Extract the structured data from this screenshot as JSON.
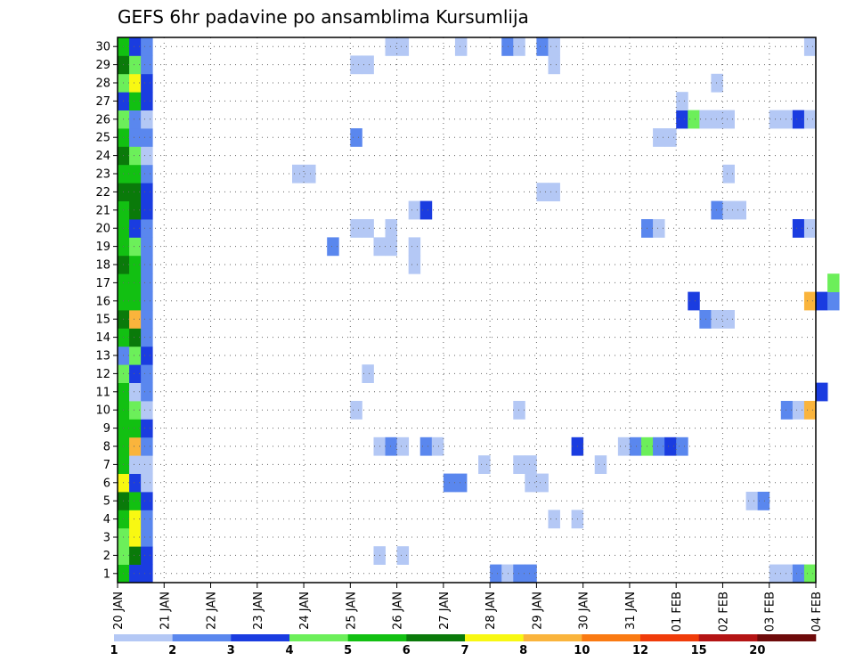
{
  "chart_data": {
    "type": "heatmap",
    "title": "GEFS 6hr padavine po ansamblima Kursumlija",
    "xlabel": "",
    "ylabel": "",
    "x_range": [
      "2024-01-20 00:00",
      "2024-02-04 00:00"
    ],
    "x_step_hours": 6,
    "grid": true,
    "x_tick_labels": [
      "20 JAN",
      "21 JAN",
      "22 JAN",
      "23 JAN",
      "24 JAN",
      "25 JAN",
      "26 JAN",
      "27 JAN",
      "28 JAN",
      "29 JAN",
      "30 JAN",
      "31 JAN",
      "01 FEB",
      "02 FEB",
      "03 FEB",
      "04 FEB"
    ],
    "members": [
      1,
      2,
      3,
      4,
      5,
      6,
      7,
      8,
      9,
      10,
      11,
      12,
      13,
      14,
      15,
      16,
      17,
      18,
      19,
      20,
      21,
      22,
      23,
      24,
      25,
      26,
      27,
      28,
      29,
      30
    ],
    "colorbar": {
      "labels": [
        "1",
        "2",
        "3",
        "4",
        "5",
        "6",
        "7",
        "8",
        "10",
        "12",
        "15",
        "20"
      ],
      "colors": [
        "#b4c8f5",
        "#5a87ee",
        "#1a3ce0",
        "#6cef5a",
        "#12c012",
        "#0a7a0a",
        "#f8f812",
        "#fab43c",
        "#fa7a12",
        "#f03c0a",
        "#b41414",
        "#6e0a0a"
      ]
    },
    "cells": [
      [
        1,
        0,
        5
      ],
      [
        1,
        1,
        3
      ],
      [
        1,
        2,
        3
      ],
      [
        2,
        0,
        4
      ],
      [
        2,
        1,
        6
      ],
      [
        2,
        2,
        3
      ],
      [
        3,
        0,
        4
      ],
      [
        3,
        1,
        7
      ],
      [
        3,
        2,
        2
      ],
      [
        4,
        0,
        5
      ],
      [
        4,
        1,
        7
      ],
      [
        4,
        2,
        2
      ],
      [
        5,
        0,
        6
      ],
      [
        5,
        1,
        5
      ],
      [
        5,
        2,
        3
      ],
      [
        6,
        0,
        7
      ],
      [
        6,
        1,
        3
      ],
      [
        6,
        2,
        1
      ],
      [
        7,
        0,
        5
      ],
      [
        7,
        1,
        1
      ],
      [
        7,
        2,
        1
      ],
      [
        8,
        0,
        5
      ],
      [
        8,
        1,
        8
      ],
      [
        8,
        2,
        2
      ],
      [
        9,
        0,
        5
      ],
      [
        9,
        1,
        5
      ],
      [
        9,
        2,
        3
      ],
      [
        10,
        0,
        5
      ],
      [
        10,
        1,
        4
      ],
      [
        10,
        2,
        1
      ],
      [
        11,
        0,
        5
      ],
      [
        11,
        1,
        1
      ],
      [
        11,
        2,
        2
      ],
      [
        12,
        0,
        4
      ],
      [
        12,
        1,
        3
      ],
      [
        12,
        2,
        2
      ],
      [
        13,
        0,
        2
      ],
      [
        13,
        1,
        4
      ],
      [
        13,
        2,
        3
      ],
      [
        14,
        0,
        5
      ],
      [
        14,
        1,
        6
      ],
      [
        14,
        2,
        2
      ],
      [
        15,
        0,
        6
      ],
      [
        15,
        1,
        8
      ],
      [
        15,
        2,
        2
      ],
      [
        16,
        0,
        5
      ],
      [
        16,
        1,
        5
      ],
      [
        16,
        2,
        2
      ],
      [
        17,
        0,
        5
      ],
      [
        17,
        1,
        5
      ],
      [
        17,
        2,
        2
      ],
      [
        18,
        0,
        6
      ],
      [
        18,
        1,
        5
      ],
      [
        18,
        2,
        2
      ],
      [
        19,
        0,
        5
      ],
      [
        19,
        1,
        4
      ],
      [
        19,
        2,
        2
      ],
      [
        20,
        0,
        5
      ],
      [
        20,
        1,
        3
      ],
      [
        20,
        2,
        2
      ],
      [
        21,
        0,
        5
      ],
      [
        21,
        1,
        6
      ],
      [
        21,
        2,
        3
      ],
      [
        22,
        0,
        6
      ],
      [
        22,
        1,
        6
      ],
      [
        22,
        2,
        3
      ],
      [
        23,
        0,
        5
      ],
      [
        23,
        1,
        5
      ],
      [
        23,
        2,
        2
      ],
      [
        24,
        0,
        6
      ],
      [
        24,
        1,
        4
      ],
      [
        24,
        2,
        1
      ],
      [
        25,
        0,
        5
      ],
      [
        25,
        1,
        2
      ],
      [
        25,
        2,
        2
      ],
      [
        26,
        0,
        4
      ],
      [
        26,
        1,
        2
      ],
      [
        26,
        2,
        1
      ],
      [
        27,
        0,
        3
      ],
      [
        27,
        1,
        5
      ],
      [
        27,
        2,
        3
      ],
      [
        28,
        0,
        4
      ],
      [
        28,
        1,
        7
      ],
      [
        28,
        2,
        3
      ],
      [
        29,
        0,
        6
      ],
      [
        29,
        1,
        4
      ],
      [
        29,
        2,
        2
      ],
      [
        30,
        0,
        5
      ],
      [
        30,
        1,
        3
      ],
      [
        30,
        2,
        2
      ],
      [
        1,
        32,
        2
      ],
      [
        1,
        33,
        1
      ],
      [
        1,
        34,
        2
      ],
      [
        1,
        35,
        2
      ],
      [
        1,
        56,
        1
      ],
      [
        1,
        57,
        1
      ],
      [
        1,
        58,
        2
      ],
      [
        1,
        59,
        4
      ],
      [
        2,
        22,
        1
      ],
      [
        2,
        24,
        1
      ],
      [
        4,
        37,
        1
      ],
      [
        4,
        39,
        1
      ],
      [
        5,
        54,
        1
      ],
      [
        5,
        55,
        2
      ],
      [
        6,
        28,
        2
      ],
      [
        6,
        29,
        2
      ],
      [
        6,
        35,
        1
      ],
      [
        6,
        36,
        1
      ],
      [
        7,
        31,
        1
      ],
      [
        7,
        34,
        1
      ],
      [
        7,
        35,
        1
      ],
      [
        7,
        41,
        1
      ],
      [
        8,
        22,
        1
      ],
      [
        8,
        23,
        2
      ],
      [
        8,
        24,
        1
      ],
      [
        8,
        26,
        2
      ],
      [
        8,
        27,
        1
      ],
      [
        8,
        39,
        3
      ],
      [
        8,
        43,
        1
      ],
      [
        8,
        44,
        2
      ],
      [
        8,
        45,
        4
      ],
      [
        8,
        46,
        2
      ],
      [
        8,
        47,
        3
      ],
      [
        8,
        48,
        2
      ],
      [
        10,
        20,
        1
      ],
      [
        10,
        34,
        1
      ],
      [
        10,
        57,
        2
      ],
      [
        10,
        58,
        1
      ],
      [
        10,
        59,
        8
      ],
      [
        11,
        60,
        3
      ],
      [
        12,
        21,
        1
      ],
      [
        15,
        50,
        2
      ],
      [
        15,
        51,
        1
      ],
      [
        15,
        52,
        1
      ],
      [
        16,
        49,
        3
      ],
      [
        16,
        59,
        8
      ],
      [
        16,
        60,
        3
      ],
      [
        16,
        61,
        2
      ],
      [
        17,
        61,
        4
      ],
      [
        18,
        25,
        1
      ],
      [
        19,
        18,
        2
      ],
      [
        19,
        22,
        1
      ],
      [
        19,
        23,
        1
      ],
      [
        19,
        25,
        1
      ],
      [
        20,
        20,
        1
      ],
      [
        20,
        21,
        1
      ],
      [
        20,
        23,
        1
      ],
      [
        20,
        45,
        2
      ],
      [
        20,
        46,
        1
      ],
      [
        20,
        58,
        3
      ],
      [
        20,
        59,
        1
      ],
      [
        21,
        25,
        1
      ],
      [
        21,
        26,
        3
      ],
      [
        21,
        51,
        2
      ],
      [
        21,
        52,
        1
      ],
      [
        21,
        53,
        1
      ],
      [
        22,
        36,
        1
      ],
      [
        22,
        37,
        1
      ],
      [
        23,
        15,
        1
      ],
      [
        23,
        16,
        1
      ],
      [
        23,
        52,
        1
      ],
      [
        25,
        20,
        2
      ],
      [
        25,
        46,
        1
      ],
      [
        25,
        47,
        1
      ],
      [
        26,
        48,
        3
      ],
      [
        26,
        49,
        4
      ],
      [
        26,
        50,
        1
      ],
      [
        26,
        51,
        1
      ],
      [
        26,
        52,
        1
      ],
      [
        26,
        56,
        1
      ],
      [
        26,
        57,
        1
      ],
      [
        26,
        58,
        3
      ],
      [
        26,
        59,
        1
      ],
      [
        27,
        48,
        1
      ],
      [
        28,
        51,
        1
      ],
      [
        29,
        20,
        1
      ],
      [
        29,
        21,
        1
      ],
      [
        29,
        37,
        1
      ],
      [
        30,
        23,
        1
      ],
      [
        30,
        24,
        1
      ],
      [
        30,
        29,
        1
      ],
      [
        30,
        33,
        2
      ],
      [
        30,
        34,
        1
      ],
      [
        30,
        36,
        2
      ],
      [
        30,
        37,
        1
      ],
      [
        30,
        59,
        1
      ]
    ]
  }
}
